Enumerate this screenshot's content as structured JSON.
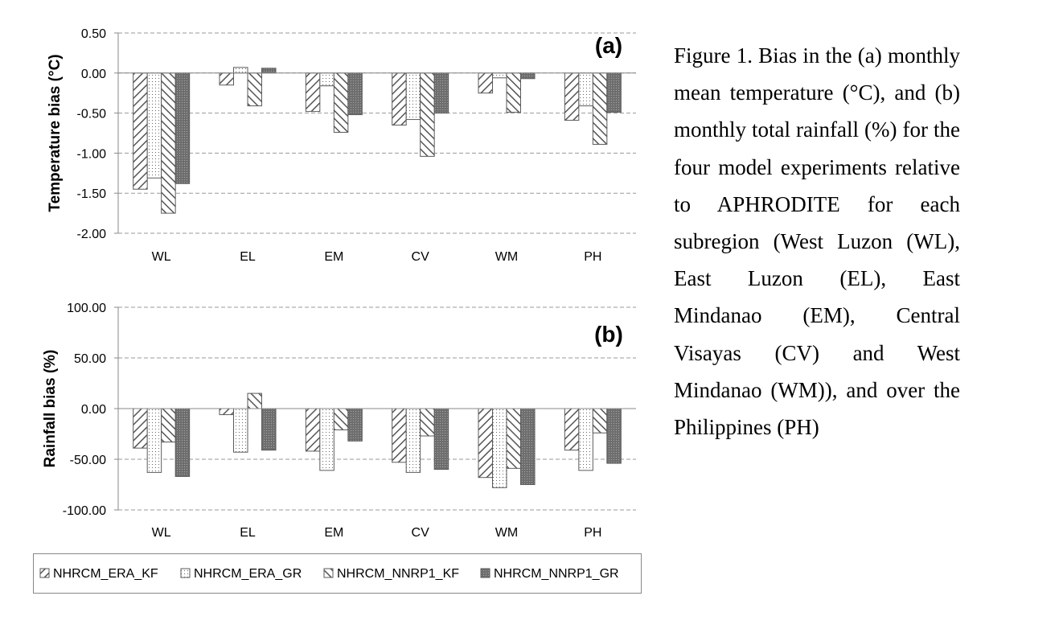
{
  "chart_data": [
    {
      "type": "bar",
      "panel": "(a)",
      "ylabel": "Temperature bias (°C)",
      "categories": [
        "WL",
        "EL",
        "EM",
        "CV",
        "WM",
        "PH"
      ],
      "ylim": [
        -2.0,
        0.5
      ],
      "yticks": [
        "0.50",
        "0.00",
        "-0.50",
        "-1.00",
        "-1.50",
        "-2.00"
      ],
      "grid": true,
      "series": [
        {
          "name": "NHRCM_ERA_KF",
          "values": [
            -1.45,
            -0.15,
            -0.48,
            -0.65,
            -0.25,
            -0.59
          ]
        },
        {
          "name": "NHRCM_ERA_GR",
          "values": [
            -1.31,
            0.07,
            -0.16,
            -0.58,
            -0.06,
            -0.41
          ]
        },
        {
          "name": "NHRCM_NNRP1_KF",
          "values": [
            -1.75,
            -0.41,
            -0.74,
            -1.04,
            -0.49,
            -0.89
          ]
        },
        {
          "name": "NHRCM_NNRP1_GR",
          "values": [
            -1.38,
            0.06,
            -0.52,
            -0.5,
            -0.07,
            -0.49
          ]
        }
      ]
    },
    {
      "type": "bar",
      "panel": "(b)",
      "ylabel": "Rainfall bias (%)",
      "categories": [
        "WL",
        "EL",
        "EM",
        "CV",
        "WM",
        "PH"
      ],
      "ylim": [
        -100.0,
        100.0
      ],
      "yticks": [
        "100.00",
        "50.00",
        "0.00",
        "-50.00",
        "-100.00"
      ],
      "grid": true,
      "series": [
        {
          "name": "NHRCM_ERA_KF",
          "values": [
            -39,
            -6,
            -42,
            -53,
            -68,
            -41
          ]
        },
        {
          "name": "NHRCM_ERA_GR",
          "values": [
            -63,
            -43,
            -61,
            -63,
            -78,
            -61
          ]
        },
        {
          "name": "NHRCM_NNRP1_KF",
          "values": [
            -33,
            15,
            -21,
            -27,
            -59,
            -24
          ]
        },
        {
          "name": "NHRCM_NNRP1_GR",
          "values": [
            -67,
            -41,
            -32,
            -60,
            -75,
            -54
          ]
        }
      ]
    }
  ],
  "legend": {
    "placement": "bottom",
    "items": [
      "NHRCM_ERA_KF",
      "NHRCM_ERA_GR",
      "NHRCM_NNRP1_KF",
      "NHRCM_NNRP1_GR"
    ]
  },
  "caption": "Figure 1. Bias in the (a) monthly mean temperature (°C), and (b) monthly total rainfall (%) for the four model experiments relative to APHRODITE for each subregion (West Luzon (WL), East Luzon (EL), East Mindanao (EM), Central Visayas (CV) and West Mindanao (WM)), and over the Philippines (PH)"
}
